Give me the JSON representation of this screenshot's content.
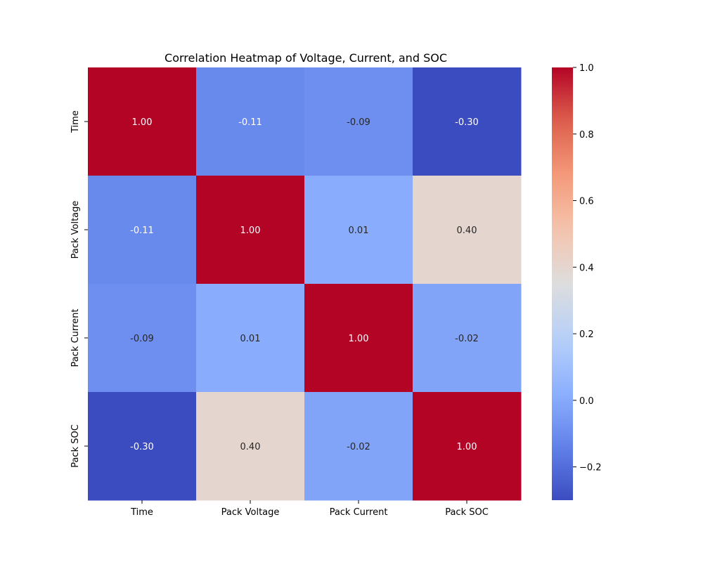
{
  "chart_data": {
    "type": "heatmap",
    "title": "Correlation Heatmap of Voltage, Current, and SOC",
    "x_labels": [
      "Time",
      "Pack Voltage",
      "Pack Current",
      "Pack SOC"
    ],
    "y_labels": [
      "Time",
      "Pack Voltage",
      "Pack Current",
      "Pack SOC"
    ],
    "values": [
      [
        1.0,
        -0.11,
        -0.09,
        -0.3
      ],
      [
        -0.11,
        1.0,
        0.01,
        0.4
      ],
      [
        -0.09,
        0.01,
        1.0,
        -0.02
      ],
      [
        -0.3,
        0.4,
        -0.02,
        1.0
      ]
    ],
    "cell_labels": [
      [
        "1.00",
        "-0.11",
        "-0.09",
        "-0.30"
      ],
      [
        "-0.11",
        "1.00",
        "0.01",
        "0.40"
      ],
      [
        "-0.09",
        "0.01",
        "1.00",
        "-0.02"
      ],
      [
        "-0.30",
        "0.40",
        "-0.02",
        "1.00"
      ]
    ],
    "colormap": "coolwarm",
    "value_range": [
      -0.3,
      1.0
    ],
    "colorbar_ticks": [
      -0.2,
      0.0,
      0.2,
      0.4,
      0.6,
      0.8,
      1.0
    ],
    "colorbar_tick_labels": [
      "−0.2",
      "0.0",
      "0.2",
      "0.4",
      "0.6",
      "0.8",
      "1.0"
    ],
    "xlabel": "",
    "ylabel": ""
  }
}
